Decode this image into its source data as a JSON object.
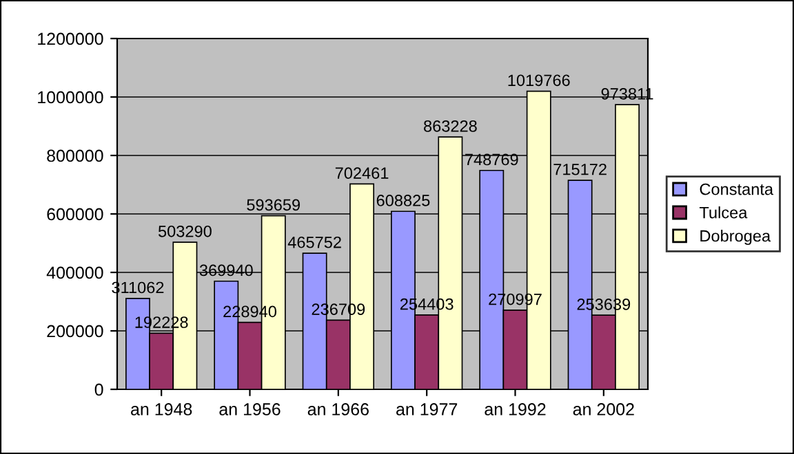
{
  "chart_data": {
    "type": "bar",
    "categories": [
      "an 1948",
      "an 1956",
      "an 1966",
      "an 1977",
      "an 1992",
      "an 2002"
    ],
    "series": [
      {
        "name": "Constanta",
        "color": "#9999ff",
        "values": [
          311062,
          369940,
          465752,
          608825,
          748769,
          715172
        ]
      },
      {
        "name": "Tulcea",
        "color": "#993366",
        "values": [
          192228,
          228940,
          236709,
          254403,
          270997,
          253639
        ]
      },
      {
        "name": "Dobrogea",
        "color": "#ffffcc",
        "values": [
          503290,
          593659,
          702461,
          863228,
          1019766,
          973811
        ]
      }
    ],
    "ylim": [
      0,
      1200000
    ],
    "yticks": [
      0,
      200000,
      400000,
      600000,
      800000,
      1000000,
      1200000
    ],
    "grid": "y",
    "legend": "right",
    "data_labels": true
  }
}
